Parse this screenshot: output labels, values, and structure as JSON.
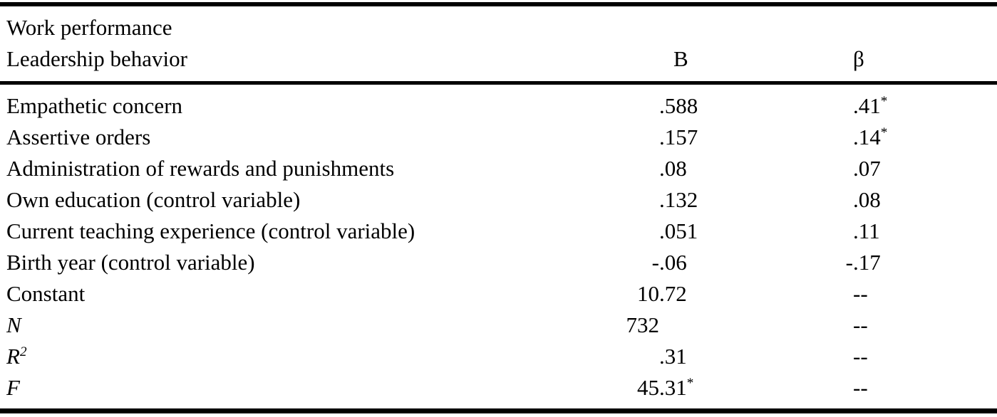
{
  "table": {
    "title_line1": "Work performance",
    "title_line2": "Leadership behavior",
    "columns": {
      "b": "B",
      "beta": "β"
    },
    "rows": [
      {
        "label": "Empathetic concern",
        "label_italic": false,
        "label_sup": "",
        "b": ".588",
        "beta": ".41*"
      },
      {
        "label": "Assertive orders",
        "label_italic": false,
        "label_sup": "",
        "b": ".157",
        "beta": ".14*"
      },
      {
        "label": "Administration of rewards and punishments",
        "label_italic": false,
        "label_sup": "",
        "b": ".08",
        "beta": ".07"
      },
      {
        "label": "Own education (control variable)",
        "label_italic": false,
        "label_sup": "",
        "b": ".132",
        "beta": ".08"
      },
      {
        "label": "Current teaching experience (control variable)",
        "label_italic": false,
        "label_sup": "",
        "b": ".051",
        "beta": ".11"
      },
      {
        "label": "Birth year (control variable)",
        "label_italic": false,
        "label_sup": "",
        "b": "-.06",
        "beta": "-.17"
      },
      {
        "label": "Constant",
        "label_italic": false,
        "label_sup": "",
        "b": "10.72",
        "beta": "--"
      },
      {
        "label": "N",
        "label_italic": true,
        "label_sup": "",
        "b": "732",
        "beta": "--"
      },
      {
        "label": "R",
        "label_italic": true,
        "label_sup": "2",
        "b": ".31",
        "beta": "--"
      },
      {
        "label": "F",
        "label_italic": true,
        "label_sup": "",
        "b": "45.31*",
        "beta": "--"
      }
    ]
  },
  "colors": {
    "text": "#000000",
    "background": "#ffffff",
    "rule": "#000000"
  }
}
